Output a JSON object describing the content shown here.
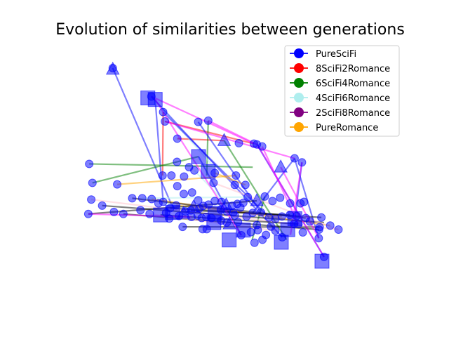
{
  "chart_data": {
    "type": "scatter",
    "title": "Evolution of similarities between generations",
    "xlabel": "",
    "ylabel": "",
    "axes_visible": false,
    "grid": false,
    "xlim": [
      0,
      100
    ],
    "ylim": [
      0,
      100
    ],
    "legend_placement": "top-right",
    "point_color": "#0000ff",
    "series": [
      {
        "name": "PureSciFi",
        "color": "#0000ff"
      },
      {
        "name": "8SciFi2Romance",
        "color": "#ff0000"
      },
      {
        "name": "6SciFi4Romance",
        "color": "#008000"
      },
      {
        "name": "4SciFi6Romance",
        "color": "#afeeee"
      },
      {
        "name": "2SciFi8Romance",
        "color": "#800080"
      },
      {
        "name": "PureRomance",
        "color": "#ffa500"
      }
    ],
    "points": [
      {
        "x": 9.7,
        "y": 92.5,
        "marker": "circle"
      },
      {
        "x": 9.7,
        "y": 92.0,
        "marker": "triangle"
      },
      {
        "x": 21.6,
        "y": 80.7,
        "marker": "square"
      },
      {
        "x": 24.1,
        "y": 80.1,
        "marker": "square"
      },
      {
        "x": 22.8,
        "y": 81.3,
        "marker": "circle"
      },
      {
        "x": 26.8,
        "y": 75.1,
        "marker": "circle"
      },
      {
        "x": 27.4,
        "y": 71.4,
        "marker": "circle"
      },
      {
        "x": 31.6,
        "y": 64.6,
        "marker": "circle"
      },
      {
        "x": 38.7,
        "y": 71.2,
        "marker": "circle"
      },
      {
        "x": 42.1,
        "y": 71.7,
        "marker": "circle"
      },
      {
        "x": 47.5,
        "y": 63.8,
        "marker": "triangle"
      },
      {
        "x": 52.5,
        "y": 62.8,
        "marker": "circle"
      },
      {
        "x": 57.6,
        "y": 62.6,
        "marker": "circle"
      },
      {
        "x": 58.6,
        "y": 62.3,
        "marker": "circle"
      },
      {
        "x": 60.4,
        "y": 61.5,
        "marker": "circle"
      },
      {
        "x": 38.8,
        "y": 57.5,
        "marker": "square"
      },
      {
        "x": 31.5,
        "y": 55.4,
        "marker": "circle"
      },
      {
        "x": 35.6,
        "y": 53.3,
        "marker": "circle"
      },
      {
        "x": 66.7,
        "y": 53.3,
        "marker": "triangle"
      },
      {
        "x": 71.4,
        "y": 56.8,
        "marker": "circle"
      },
      {
        "x": 1.7,
        "y": 54.6,
        "marker": "circle"
      },
      {
        "x": 2.8,
        "y": 47.1,
        "marker": "circle"
      },
      {
        "x": 11.2,
        "y": 46.5,
        "marker": "circle"
      },
      {
        "x": 26.6,
        "y": 50.0,
        "marker": "circle"
      },
      {
        "x": 29.6,
        "y": 50.0,
        "marker": "circle"
      },
      {
        "x": 33.9,
        "y": 49.6,
        "marker": "circle"
      },
      {
        "x": 37.4,
        "y": 52.0,
        "marker": "circle"
      },
      {
        "x": 42.1,
        "y": 51.6,
        "marker": "square"
      },
      {
        "x": 44.3,
        "y": 51.0,
        "marker": "circle"
      },
      {
        "x": 51.5,
        "y": 50.0,
        "marker": "circle"
      },
      {
        "x": 43.9,
        "y": 47.1,
        "marker": "circle"
      },
      {
        "x": 51.1,
        "y": 46.3,
        "marker": "circle"
      },
      {
        "x": 54.7,
        "y": 46.3,
        "marker": "circle"
      },
      {
        "x": 31.6,
        "y": 45.8,
        "marker": "circle"
      },
      {
        "x": 2.4,
        "y": 40.5,
        "marker": "circle"
      },
      {
        "x": 6.1,
        "y": 38.1,
        "marker": "circle"
      },
      {
        "x": 1.4,
        "y": 34.8,
        "marker": "circle"
      },
      {
        "x": 13.3,
        "y": 34.8,
        "marker": "circle"
      },
      {
        "x": 19.1,
        "y": 36.3,
        "marker": "circle"
      },
      {
        "x": 22.9,
        "y": 40.7,
        "marker": "circle"
      },
      {
        "x": 25.2,
        "y": 39.0,
        "marker": "circle"
      },
      {
        "x": 26.8,
        "y": 39.6,
        "marker": "circle"
      },
      {
        "x": 29.2,
        "y": 37.1,
        "marker": "circle"
      },
      {
        "x": 31.2,
        "y": 38.2,
        "marker": "circle"
      },
      {
        "x": 33.8,
        "y": 42.7,
        "marker": "circle"
      },
      {
        "x": 36.6,
        "y": 43.3,
        "marker": "circle"
      },
      {
        "x": 38.7,
        "y": 40.2,
        "marker": "circle"
      },
      {
        "x": 16.3,
        "y": 41.0,
        "marker": "circle"
      },
      {
        "x": 19.7,
        "y": 41.0,
        "marker": "circle"
      },
      {
        "x": 30.0,
        "y": 35.4,
        "marker": "square"
      },
      {
        "x": 33.7,
        "y": 35.0,
        "marker": "triangle"
      },
      {
        "x": 34.4,
        "y": 35.8,
        "marker": "circle"
      },
      {
        "x": 36.2,
        "y": 36.2,
        "marker": "circle"
      },
      {
        "x": 37.1,
        "y": 37.5,
        "marker": "triangle"
      },
      {
        "x": 39.1,
        "y": 37.0,
        "marker": "circle"
      },
      {
        "x": 40.4,
        "y": 38.0,
        "marker": "circle"
      },
      {
        "x": 42.2,
        "y": 38.5,
        "marker": "circle"
      },
      {
        "x": 44.3,
        "y": 39.9,
        "marker": "circle"
      },
      {
        "x": 46.6,
        "y": 39.6,
        "marker": "circle"
      },
      {
        "x": 48.2,
        "y": 38.3,
        "marker": "triangle"
      },
      {
        "x": 50.2,
        "y": 38.0,
        "marker": "circle"
      },
      {
        "x": 52.0,
        "y": 38.8,
        "marker": "circle"
      },
      {
        "x": 54.0,
        "y": 39.2,
        "marker": "circle"
      },
      {
        "x": 55.5,
        "y": 41.5,
        "marker": "circle"
      },
      {
        "x": 58.6,
        "y": 40.0,
        "marker": "triangle"
      },
      {
        "x": 61.3,
        "y": 41.7,
        "marker": "circle"
      },
      {
        "x": 63.9,
        "y": 39.9,
        "marker": "circle"
      },
      {
        "x": 66.5,
        "y": 41.2,
        "marker": "circle"
      },
      {
        "x": 69.9,
        "y": 39.0,
        "marker": "circle"
      },
      {
        "x": 74.6,
        "y": 39.6,
        "marker": "circle"
      },
      {
        "x": 10.1,
        "y": 35.6,
        "marker": "circle"
      },
      {
        "x": 25.9,
        "y": 34.4,
        "marker": "square"
      },
      {
        "x": 27.8,
        "y": 35.2,
        "marker": "circle"
      },
      {
        "x": 28.9,
        "y": 33.0,
        "marker": "circle"
      },
      {
        "x": 32.2,
        "y": 34.0,
        "marker": "circle"
      },
      {
        "x": 36.4,
        "y": 33.6,
        "marker": "circle"
      },
      {
        "x": 38.5,
        "y": 34.2,
        "marker": "circle"
      },
      {
        "x": 41.4,
        "y": 33.6,
        "marker": "circle"
      },
      {
        "x": 44.4,
        "y": 35.0,
        "marker": "square"
      },
      {
        "x": 46.4,
        "y": 36.5,
        "marker": "circle"
      },
      {
        "x": 48.4,
        "y": 35.8,
        "marker": "circle"
      },
      {
        "x": 50.6,
        "y": 35.4,
        "marker": "circle"
      },
      {
        "x": 53.0,
        "y": 37.3,
        "marker": "circle"
      },
      {
        "x": 55.1,
        "y": 33.8,
        "marker": "circle"
      },
      {
        "x": 57.2,
        "y": 35.2,
        "marker": "circle"
      },
      {
        "x": 60.0,
        "y": 35.4,
        "marker": "circle"
      },
      {
        "x": 62.8,
        "y": 33.4,
        "marker": "circle"
      },
      {
        "x": 64.9,
        "y": 32.8,
        "marker": "circle"
      },
      {
        "x": 67.1,
        "y": 33.8,
        "marker": "circle"
      },
      {
        "x": 69.8,
        "y": 34.4,
        "marker": "circle"
      },
      {
        "x": 71.5,
        "y": 32.9,
        "marker": "square"
      },
      {
        "x": 72.7,
        "y": 30.8,
        "marker": "circle"
      },
      {
        "x": 80.5,
        "y": 33.4,
        "marker": "circle"
      },
      {
        "x": 22.2,
        "y": 34.8,
        "marker": "circle"
      },
      {
        "x": 33.4,
        "y": 29.7,
        "marker": "circle"
      },
      {
        "x": 40.2,
        "y": 28.8,
        "marker": "circle"
      },
      {
        "x": 41.6,
        "y": 28.8,
        "marker": "circle"
      },
      {
        "x": 44.0,
        "y": 31.4,
        "marker": "square"
      },
      {
        "x": 46.5,
        "y": 32.2,
        "marker": "circle"
      },
      {
        "x": 49.3,
        "y": 30.8,
        "marker": "triangle"
      },
      {
        "x": 52.2,
        "y": 31.6,
        "marker": "circle"
      },
      {
        "x": 54.0,
        "y": 28.4,
        "marker": "square"
      },
      {
        "x": 56.6,
        "y": 27.6,
        "marker": "circle"
      },
      {
        "x": 58.9,
        "y": 28.4,
        "marker": "circle"
      },
      {
        "x": 61.7,
        "y": 26.5,
        "marker": "circle"
      },
      {
        "x": 64.9,
        "y": 28.2,
        "marker": "circle"
      },
      {
        "x": 67.2,
        "y": 25.6,
        "marker": "circle"
      },
      {
        "x": 69.1,
        "y": 28.6,
        "marker": "square"
      },
      {
        "x": 71.2,
        "y": 30.8,
        "marker": "circle"
      },
      {
        "x": 74.2,
        "y": 27.5,
        "marker": "circle"
      },
      {
        "x": 79.9,
        "y": 29.6,
        "marker": "circle"
      },
      {
        "x": 83.5,
        "y": 30.2,
        "marker": "circle"
      },
      {
        "x": 86.3,
        "y": 28.6,
        "marker": "circle"
      },
      {
        "x": 49.2,
        "y": 24.5,
        "marker": "square"
      },
      {
        "x": 53.3,
        "y": 26.4,
        "marker": "circle"
      },
      {
        "x": 57.8,
        "y": 23.4,
        "marker": "circle"
      },
      {
        "x": 60.5,
        "y": 24.6,
        "marker": "circle"
      },
      {
        "x": 66.9,
        "y": 23.6,
        "marker": "square"
      },
      {
        "x": 79.7,
        "y": 28.6,
        "marker": "circle"
      },
      {
        "x": 79.6,
        "y": 25.2,
        "marker": "circle"
      },
      {
        "x": 81.4,
        "y": 17.8,
        "marker": "circle"
      },
      {
        "x": 80.7,
        "y": 16.1,
        "marker": "square"
      },
      {
        "x": 73.9,
        "y": 55.2,
        "marker": "circle"
      },
      {
        "x": 73.4,
        "y": 39.0,
        "marker": "circle"
      },
      {
        "x": 39.9,
        "y": 33.2,
        "marker": "circle"
      },
      {
        "x": 43.2,
        "y": 33.2,
        "marker": "circle"
      },
      {
        "x": 51.1,
        "y": 34.2,
        "marker": "circle"
      },
      {
        "x": 48.4,
        "y": 31.4,
        "marker": "circle"
      },
      {
        "x": 58.6,
        "y": 30.4,
        "marker": "circle"
      },
      {
        "x": 63.4,
        "y": 29.8,
        "marker": "circle"
      },
      {
        "x": 72.1,
        "y": 34.0,
        "marker": "circle"
      },
      {
        "x": 75.2,
        "y": 33.2,
        "marker": "circle"
      },
      {
        "x": 76.6,
        "y": 31.8,
        "marker": "circle"
      }
    ],
    "connections": [
      {
        "series": "PureSciFi",
        "from": [
          9.7,
          92.5
        ],
        "to": [
          29.8,
          38.0
        ]
      },
      {
        "series": "PureSciFi",
        "from": [
          24.1,
          80.1
        ],
        "to": [
          26.8,
          39.6
        ]
      },
      {
        "series": "8SciFi2Romance",
        "from": [
          26.8,
          75.1
        ],
        "to": [
          26.6,
          50.0
        ]
      },
      {
        "series": "8SciFi2Romance",
        "from": [
          27.4,
          71.4
        ],
        "to": [
          57.6,
          62.6
        ]
      },
      {
        "series": "8SciFi2Romance",
        "from": [
          31.6,
          64.6
        ],
        "to": [
          47.5,
          63.8
        ]
      },
      {
        "series": "6SciFi4Romance",
        "from": [
          42.1,
          71.7
        ],
        "to": [
          41.6,
          50.0
        ]
      },
      {
        "series": "6SciFi4Romance",
        "from": [
          1.7,
          54.6
        ],
        "to": [
          57.2,
          53.3
        ]
      },
      {
        "series": "6SciFi4Romance",
        "from": [
          2.8,
          47.1
        ],
        "to": [
          38.8,
          57.5
        ]
      },
      {
        "series": "6SciFi4Romance",
        "from": [
          47.5,
          63.8
        ],
        "to": [
          68.7,
          24.6
        ]
      },
      {
        "series": "6SciFi4Romance",
        "from": [
          61.3,
          41.7
        ],
        "to": [
          57.0,
          24.6
        ]
      },
      {
        "series": "4SciFi6Romance",
        "from": [
          22.8,
          81.3
        ],
        "to": [
          43.9,
          53.5
        ]
      },
      {
        "series": "4SciFi6Romance",
        "from": [
          37.4,
          52.0
        ],
        "to": [
          51.1,
          35.4
        ]
      },
      {
        "series": "4SciFi6Romance",
        "from": [
          26.6,
          39.0
        ],
        "to": [
          40.2,
          36.2
        ]
      },
      {
        "series": "PureSciFi",
        "from": [
          22.8,
          81.3
        ],
        "to": [
          67.2,
          25.6
        ]
      },
      {
        "series": "PureSciFi",
        "from": [
          26.8,
          75.1
        ],
        "to": [
          62.8,
          33.4
        ]
      },
      {
        "series": "PureSciFi",
        "from": [
          38.7,
          71.2
        ],
        "to": [
          60.0,
          35.4
        ]
      },
      {
        "series": "PureSciFi",
        "from": [
          38.8,
          57.5
        ],
        "to": [
          53.3,
          26.4
        ]
      },
      {
        "series": "PureSciFi",
        "from": [
          71.4,
          56.8
        ],
        "to": [
          57.2,
          35.2
        ]
      },
      {
        "series": "PureSciFi",
        "from": [
          58.6,
          62.3
        ],
        "to": [
          81.4,
          17.8
        ]
      },
      {
        "series": "PureSciFi",
        "from": [
          73.9,
          55.2
        ],
        "to": [
          71.5,
          32.9
        ]
      },
      {
        "series": "PureSciFi",
        "from": [
          71.4,
          56.8
        ],
        "to": [
          79.6,
          25.2
        ]
      },
      {
        "series": "2SciFi8Romance",
        "from": [
          2.4,
          40.5
        ],
        "to": [
          86.3,
          28.6
        ]
      },
      {
        "series": "2SciFi8Romance",
        "from": [
          6.1,
          38.1
        ],
        "to": [
          81.4,
          31.4
        ]
      },
      {
        "series": "2SciFi8Romance",
        "from": [
          13.3,
          34.8
        ],
        "to": [
          79.7,
          28.6
        ]
      },
      {
        "series": "2SciFi8Romance",
        "from": [
          22.2,
          34.8
        ],
        "to": [
          64.9,
          28.2
        ]
      },
      {
        "series": "2SciFi8Romance",
        "from": [
          25.9,
          34.4
        ],
        "to": [
          72.7,
          30.8
        ]
      },
      {
        "series": "2SciFi8Romance",
        "from": [
          33.4,
          29.7
        ],
        "to": [
          79.9,
          29.6
        ]
      },
      {
        "series": "PureRomance",
        "from": [
          11.2,
          46.5
        ],
        "to": [
          51.5,
          50.0
        ]
      },
      {
        "series": "PureRomance",
        "from": [
          31.2,
          38.2
        ],
        "to": [
          67.1,
          33.8
        ]
      },
      {
        "series": "PureRomance",
        "from": [
          22.9,
          40.7
        ],
        "to": [
          83.5,
          30.2
        ]
      },
      {
        "series": "PureRomance",
        "from": [
          44.3,
          51.0
        ],
        "to": [
          54.7,
          46.3
        ]
      },
      {
        "series": "2SciFi8Romance",
        "from": [
          1.4,
          34.8
        ],
        "to": [
          58.6,
          40.0
        ]
      },
      {
        "series": "2SciFi8Romance",
        "from": [
          16.3,
          41.0
        ],
        "to": [
          75.2,
          33.2
        ]
      },
      {
        "series": "4SciFi6Romance",
        "from": [
          19.7,
          41.0
        ],
        "to": [
          55.5,
          41.5
        ]
      },
      {
        "series": "2SciFi8Romance",
        "from": [
          29.2,
          37.1
        ],
        "to": [
          80.5,
          33.4
        ]
      },
      {
        "series": "2SciFi8Romance",
        "from": [
          36.2,
          36.2
        ],
        "to": [
          69.8,
          34.4
        ]
      },
      {
        "series": "2SciFi8Romance",
        "from": [
          43.9,
          47.1
        ],
        "to": [
          86.3,
          28.6
        ]
      }
    ],
    "magenta_connections": [
      {
        "from": [
          22.8,
          81.3
        ],
        "to": [
          57.6,
          62.6
        ]
      },
      {
        "from": [
          24.1,
          80.1
        ],
        "to": [
          53.3,
          26.4
        ]
      },
      {
        "from": [
          27.4,
          71.4
        ],
        "to": [
          71.4,
          56.8
        ]
      },
      {
        "from": [
          42.1,
          71.7
        ],
        "to": [
          58.6,
          62.3
        ]
      },
      {
        "from": [
          60.4,
          61.5
        ],
        "to": [
          72.7,
          30.8
        ]
      },
      {
        "from": [
          58.6,
          62.6
        ],
        "to": [
          81.4,
          17.8
        ]
      },
      {
        "from": [
          66.7,
          53.3
        ],
        "to": [
          79.6,
          25.2
        ]
      },
      {
        "from": [
          73.9,
          55.2
        ],
        "to": [
          70.0,
          26.5
        ]
      },
      {
        "from": [
          1.4,
          34.8
        ],
        "to": [
          36.4,
          33.6
        ]
      }
    ],
    "magenta_color": "#ff00ff",
    "pink_color": "#ffc0cb",
    "black_color": "#000000"
  }
}
